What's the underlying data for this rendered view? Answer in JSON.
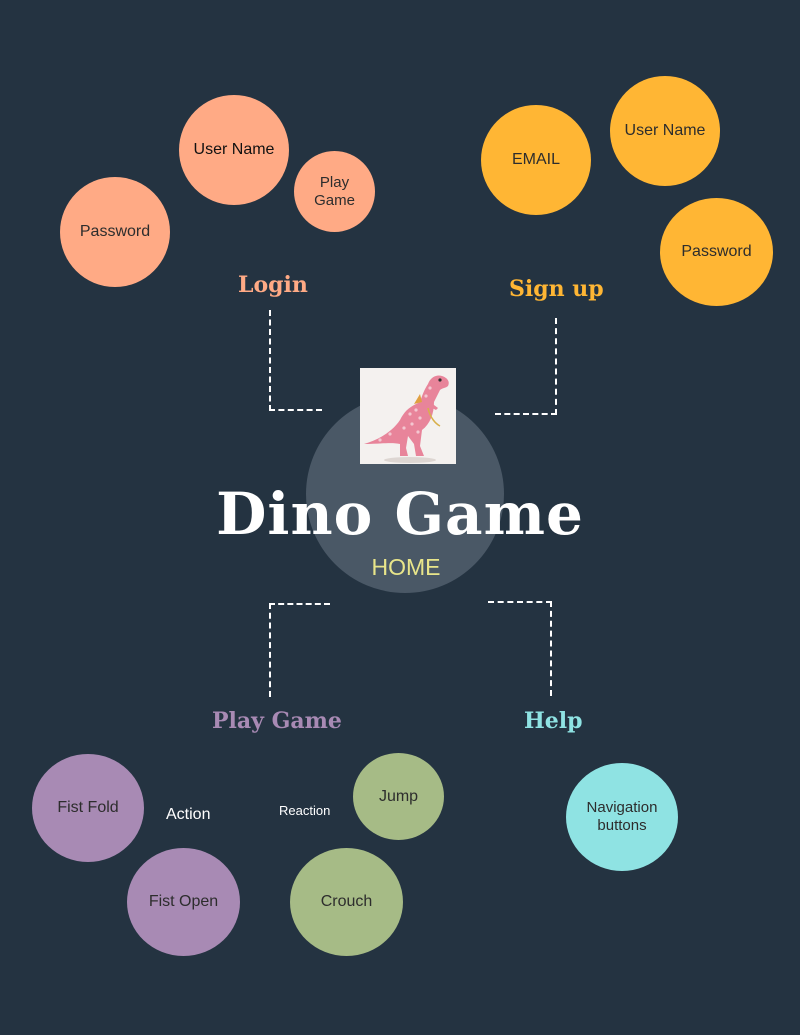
{
  "center": {
    "title": "Dino Game",
    "subtitle": "HOME"
  },
  "branches": {
    "login": {
      "heading": "Login",
      "color": "#ffaa85",
      "items": [
        "User Name",
        "Play Game",
        "Password"
      ]
    },
    "signup": {
      "heading": "Sign up",
      "color": "#ffb634",
      "items": [
        "EMAIL",
        "User Name",
        "Password"
      ]
    },
    "play": {
      "heading": "Play Game",
      "color": "#a88ab4",
      "action_label": "Action",
      "reaction_label": "Reaction",
      "actions": [
        "Fist Fold",
        "Fist Open"
      ],
      "reactions": [
        "Jump",
        "Crouch"
      ],
      "reaction_color": "#a6bb86"
    },
    "help": {
      "heading": "Help",
      "color": "#8fe3e3",
      "items": [
        "Navigation buttons"
      ]
    }
  },
  "colors": {
    "background": "#243341",
    "hub": "#4a5866",
    "subtitle": "#e8e58a"
  }
}
